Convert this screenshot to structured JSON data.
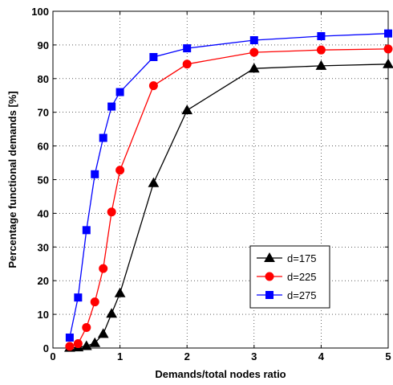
{
  "chart_data": {
    "type": "line",
    "title": "",
    "xlabel": "Demands/total nodes ratio",
    "ylabel": "Percentage functional demands [%]",
    "xlim": [
      0,
      5
    ],
    "ylim": [
      0,
      100
    ],
    "grid": true,
    "grid_style": "dotted",
    "legend_position": "lower-right",
    "x_ticks": [
      "0",
      "1",
      "2",
      "3",
      "4",
      "5"
    ],
    "y_ticks": [
      "0",
      "10",
      "20",
      "30",
      "40",
      "50",
      "60",
      "70",
      "80",
      "90",
      "100"
    ],
    "series": [
      {
        "name": "d=175",
        "color": "#000000",
        "marker": "triangle",
        "x": [
          0.25,
          0.375,
          0.5,
          0.625,
          0.75,
          0.875,
          1.0,
          1.5,
          2.0,
          3.0,
          4.0,
          5.0
        ],
        "y": [
          0.1,
          0.2,
          0.6,
          1.5,
          4.2,
          10.2,
          16.3,
          49.0,
          70.6,
          83.0,
          83.8,
          84.3
        ]
      },
      {
        "name": "d=225",
        "color": "#ff0000",
        "marker": "circle",
        "x": [
          0.25,
          0.375,
          0.5,
          0.625,
          0.75,
          0.875,
          1.0,
          1.5,
          2.0,
          3.0,
          4.0,
          5.0
        ],
        "y": [
          0.5,
          1.3,
          6.1,
          13.7,
          23.6,
          40.4,
          52.8,
          77.9,
          84.3,
          87.8,
          88.5,
          88.8
        ]
      },
      {
        "name": "d=275",
        "color": "#0000ff",
        "marker": "square",
        "x": [
          0.25,
          0.375,
          0.5,
          0.625,
          0.75,
          0.875,
          1.0,
          1.5,
          2.0,
          3.0,
          4.0,
          5.0
        ],
        "y": [
          3.1,
          15.0,
          35.0,
          51.6,
          62.4,
          71.7,
          76.0,
          86.4,
          89.0,
          91.4,
          92.6,
          93.4
        ]
      }
    ]
  }
}
